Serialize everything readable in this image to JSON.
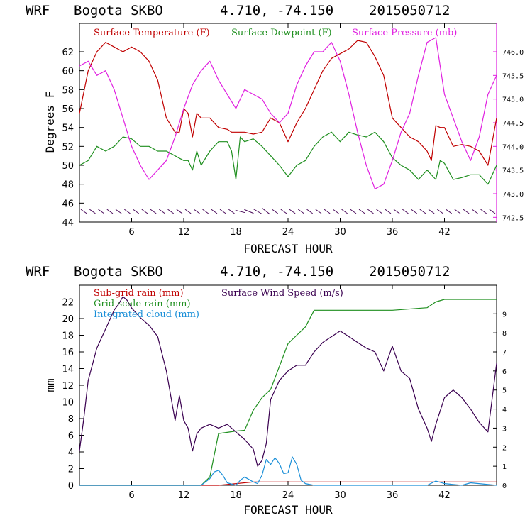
{
  "station_header": {
    "model": "WRF",
    "station": "Bogota SKBO",
    "coords": "4.710, -74.150",
    "init": "2015050712"
  },
  "colors": {
    "temp": "#c00000",
    "dew": "#1f8f1f",
    "press": "#e020e0",
    "wind": "#3a0050",
    "subgrid": "#c00000",
    "grid": "#1f8f1f",
    "cloud": "#1a8fd8",
    "barb": "#4a0a5a"
  },
  "chart_data": [
    {
      "type": "line",
      "title": "",
      "xlabel": "FORECAST HOUR",
      "ylabel": "Degrees F",
      "xlim": [
        0,
        48
      ],
      "ylim": [
        44,
        65
      ],
      "x_ticks": [
        6,
        12,
        18,
        24,
        30,
        36,
        42
      ],
      "y_ticks": [
        44,
        46,
        48,
        50,
        52,
        54,
        56,
        58,
        60,
        62
      ],
      "y2label": "",
      "y2lim": [
        742.4,
        746.6
      ],
      "y2_ticks": [
        "742.5",
        "743.0",
        "743.5",
        "744.0",
        "744.5",
        "745.0",
        "745.5",
        "746.0"
      ],
      "legend": [
        "Surface Temperature (F)",
        "Surface Dewpoint (F)",
        "Surface Pressure (mb)"
      ],
      "series": [
        {
          "name": "Surface Temperature (F)",
          "axis": "left",
          "x": [
            0,
            1,
            2,
            3,
            4,
            5,
            6,
            7,
            8,
            9,
            10,
            11,
            11.5,
            12,
            12.5,
            13,
            13.5,
            14,
            15,
            16,
            17,
            17.5,
            18,
            19,
            20,
            21,
            22,
            23,
            24,
            25,
            26,
            27,
            28,
            29,
            30,
            31,
            32,
            33,
            34,
            35,
            36,
            37,
            38,
            39,
            40,
            40.5,
            41,
            41.5,
            42,
            43,
            44,
            45,
            46,
            47,
            48
          ],
          "y": [
            55.5,
            60,
            62,
            63,
            62.5,
            62,
            62.5,
            62,
            61,
            59,
            55,
            53.5,
            53.5,
            56,
            55.5,
            53,
            55.5,
            55,
            55,
            54,
            53.8,
            53.5,
            53.5,
            53.5,
            53.3,
            53.5,
            55,
            54.5,
            52.5,
            54.5,
            56,
            58,
            60,
            61.3,
            61.8,
            62.3,
            63.2,
            63,
            61.5,
            59.5,
            55,
            54,
            53,
            52.5,
            51.5,
            50.5,
            54.2,
            54,
            54,
            52,
            52.2,
            52,
            51.5,
            50,
            55
          ]
        },
        {
          "name": "Surface Dewpoint (F)",
          "axis": "left",
          "x": [
            0,
            1,
            2,
            3,
            4,
            5,
            6,
            7,
            8,
            9,
            10,
            11,
            12,
            12.5,
            13,
            13.5,
            14,
            15,
            16,
            17,
            17.5,
            18,
            18.5,
            19,
            20,
            21,
            22,
            23,
            24,
            25,
            26,
            27,
            28,
            29,
            30,
            31,
            32,
            33,
            34,
            35,
            36,
            37,
            38,
            39,
            40,
            41,
            41.5,
            42,
            43,
            44,
            45,
            46,
            47,
            48
          ],
          "y": [
            50,
            50.5,
            52,
            51.5,
            52,
            53,
            52.8,
            52,
            52,
            51.5,
            51.5,
            51,
            50.5,
            50.5,
            49.5,
            51.5,
            50,
            51.5,
            52.5,
            52.5,
            51.5,
            48.5,
            53,
            52.5,
            52.8,
            52,
            51,
            50,
            48.8,
            50,
            50.5,
            52,
            53,
            53.5,
            52.5,
            53.5,
            53.2,
            53,
            53.5,
            52.5,
            50.8,
            50,
            49.5,
            48.5,
            49.5,
            48.5,
            50.5,
            50.2,
            48.5,
            48.7,
            49,
            49,
            48,
            50
          ]
        },
        {
          "name": "Surface Pressure (mb)",
          "axis": "right",
          "x": [
            0,
            1,
            2,
            3,
            4,
            5,
            6,
            7,
            8,
            9,
            10,
            11,
            12,
            13,
            14,
            15,
            16,
            17,
            18,
            19,
            20,
            21,
            22,
            23,
            24,
            25,
            26,
            27,
            28,
            29,
            30,
            31,
            32,
            33,
            34,
            35,
            36,
            37,
            38,
            39,
            40,
            41,
            42,
            43,
            44,
            45,
            46,
            47,
            48
          ],
          "y": [
            745.7,
            745.8,
            745.5,
            745.6,
            745.2,
            744.6,
            744.0,
            743.6,
            743.3,
            743.5,
            743.7,
            744.2,
            744.8,
            745.3,
            745.6,
            745.8,
            745.4,
            745.1,
            744.8,
            745.2,
            745.1,
            745.0,
            744.7,
            744.5,
            744.7,
            745.3,
            745.7,
            746.0,
            746.0,
            746.2,
            745.8,
            745.1,
            744.3,
            743.6,
            743.1,
            743.2,
            743.7,
            744.3,
            744.7,
            745.5,
            746.2,
            746.3,
            745.1,
            744.6,
            744.1,
            743.7,
            744.2,
            745.1,
            745.5
          ]
        }
      ]
    },
    {
      "type": "line",
      "title": "",
      "xlabel": "FORECAST HOUR",
      "ylabel": "mm",
      "xlim": [
        0,
        48
      ],
      "ylim": [
        0,
        24
      ],
      "x_ticks": [
        6,
        12,
        18,
        24,
        30,
        36,
        42
      ],
      "y_ticks": [
        0,
        2,
        4,
        6,
        8,
        10,
        12,
        14,
        16,
        18,
        20,
        22
      ],
      "y2lim": [
        0,
        10.5
      ],
      "y2_ticks": [
        0,
        1,
        2,
        3,
        4,
        5,
        6,
        7,
        8,
        9
      ],
      "legend": [
        "Sub-grid rain (mm)",
        "Grid-scale rain (mm)",
        "Integrated cloud (mm)",
        "Surface Wind Speed (m/s)"
      ],
      "series": [
        {
          "name": "Sub-grid rain (mm)",
          "axis": "left",
          "x": [
            0,
            16,
            20,
            48
          ],
          "y": [
            0,
            0,
            0.4,
            0.4
          ]
        },
        {
          "name": "Grid-scale rain (mm)",
          "axis": "left",
          "x": [
            0,
            14,
            15,
            16,
            18,
            19,
            20,
            21,
            22,
            24,
            25,
            26,
            27,
            28,
            30,
            36,
            40,
            41,
            42,
            48
          ],
          "y": [
            0,
            0,
            1,
            6.2,
            6.5,
            6.6,
            9,
            10.5,
            11.5,
            17,
            18,
            19,
            21,
            21,
            21,
            21,
            21.3,
            22,
            22.3,
            22.3
          ]
        },
        {
          "name": "Integrated cloud (mm)",
          "axis": "left",
          "x": [
            0,
            14,
            15,
            15.5,
            16,
            16.5,
            17,
            18,
            18.5,
            19,
            19.5,
            20,
            20.5,
            21,
            21.5,
            22,
            22.5,
            23,
            23.5,
            24,
            24.5,
            25,
            25.5,
            26,
            27,
            28,
            40,
            41,
            42,
            44,
            45,
            48
          ],
          "y": [
            0,
            0,
            0.8,
            1.6,
            1.8,
            1.2,
            0.3,
            0,
            0.6,
            1,
            0.7,
            0.4,
            0.2,
            1.2,
            3.1,
            2.5,
            3.3,
            2.6,
            1.4,
            1.5,
            3.4,
            2.5,
            0.6,
            0.2,
            0,
            0,
            0,
            0.5,
            0.2,
            0,
            0.3,
            0
          ]
        },
        {
          "name": "Surface Wind Speed (m/s)",
          "axis": "right",
          "x": [
            0,
            0.5,
            1,
            2,
            3,
            4,
            4.5,
            5,
            5.5,
            6,
            7,
            8,
            9,
            10,
            11,
            11.5,
            12,
            12.5,
            13,
            13.5,
            14,
            15,
            16,
            17,
            18,
            19,
            20,
            20.5,
            21,
            21.5,
            22,
            23,
            24,
            25,
            26,
            27,
            28,
            29,
            30,
            31,
            32,
            33,
            34,
            35,
            36,
            37,
            38,
            39,
            40,
            40.5,
            41,
            42,
            43,
            44,
            45,
            46,
            47,
            48
          ],
          "y": [
            1.8,
            3.5,
            5.5,
            7.2,
            8.2,
            9.2,
            9.5,
            9.9,
            9.7,
            9.3,
            8.8,
            8.4,
            7.8,
            6.0,
            3.4,
            4.7,
            3.4,
            3.0,
            1.8,
            2.7,
            3.0,
            3.2,
            3.0,
            3.2,
            2.8,
            2.4,
            1.9,
            1.0,
            1.3,
            2.2,
            4.5,
            5.5,
            6.0,
            6.3,
            6.3,
            7.0,
            7.5,
            7.8,
            8.1,
            7.8,
            7.5,
            7.2,
            7.0,
            6.0,
            7.3,
            6.0,
            5.6,
            4.0,
            3.0,
            2.3,
            3.2,
            4.6,
            5.0,
            4.6,
            4.0,
            3.3,
            2.8,
            6.4
          ]
        }
      ]
    }
  ]
}
